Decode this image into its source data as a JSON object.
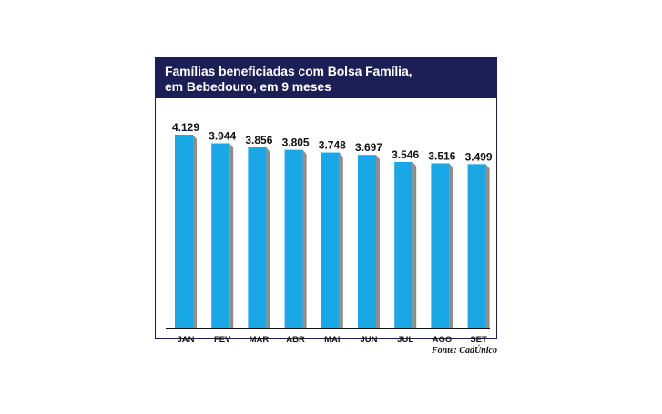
{
  "chart_data": {
    "type": "bar",
    "title_line1": "Famílias beneficiadas com Bolsa Família,",
    "title_line2": "em Bebedouro, em 9 meses",
    "categories": [
      "JAN",
      "FEV",
      "MAR",
      "ABR",
      "MAI",
      "JUN",
      "JUL",
      "AGO",
      "SET"
    ],
    "values": [
      4129,
      3944,
      3856,
      3805,
      3748,
      3697,
      3546,
      3516,
      3499
    ],
    "value_labels": [
      "4.129",
      "3.944",
      "3.856",
      "3.805",
      "3.748",
      "3.697",
      "3.546",
      "3.516",
      "3.499"
    ],
    "xlabel": "",
    "ylabel": "",
    "ylim": [
      0,
      4300
    ],
    "grid": false,
    "bar_color": "#1aa7e6",
    "shadow_color": "#8e8e8e"
  },
  "source_note": "Fonte: CadÚnico"
}
